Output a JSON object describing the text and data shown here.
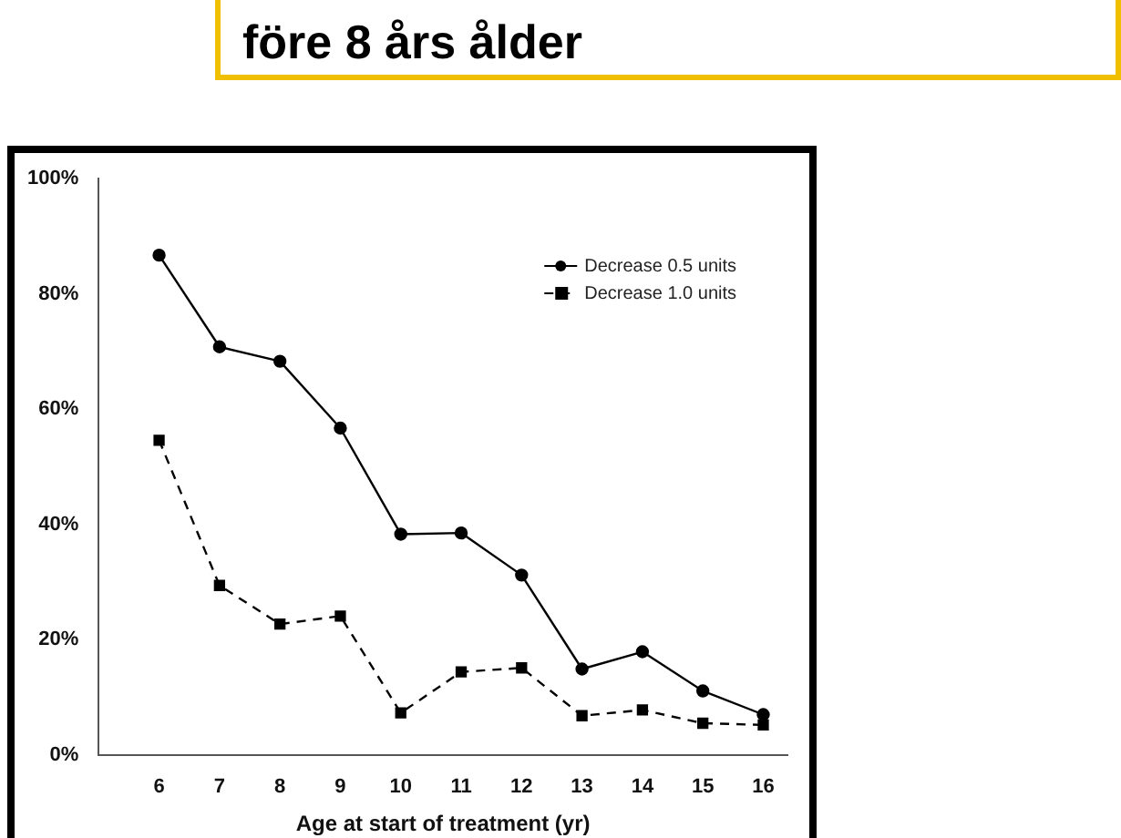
{
  "chart_data": {
    "type": "line",
    "title": "före 8 års ålder",
    "xlabel": "Age at start of treatment (yr)",
    "x": [
      6,
      7,
      8,
      9,
      10,
      11,
      12,
      13,
      14,
      15,
      16
    ],
    "series": [
      {
        "name": "Decrease 0.5 units",
        "color": "#000000",
        "marker": "circle",
        "line_style": "solid",
        "values": [
          86.7,
          70.8,
          68.3,
          56.7,
          38.3,
          38.5,
          31.2,
          14.9,
          17.9,
          11.1,
          7
        ]
      },
      {
        "name": "Decrease 1.0 units",
        "color": "#000000",
        "marker": "square",
        "line_style": "dashed",
        "values": [
          54.6,
          29.4,
          22.7,
          24.1,
          7.3,
          14.4,
          15.1,
          6.8,
          7.8,
          5.5,
          5.2
        ]
      }
    ],
    "xlim": [
      5,
      16.4
    ],
    "xticks": [
      6,
      7,
      8,
      9,
      10,
      11,
      12,
      13,
      14,
      15,
      16
    ],
    "ylim": [
      0,
      100
    ],
    "yticks": [
      {
        "value": 0,
        "label": "0%"
      },
      {
        "value": 20,
        "label": "20%"
      },
      {
        "value": 40,
        "label": "40%"
      },
      {
        "value": 60,
        "label": "60%"
      },
      {
        "value": 80,
        "label": "80%"
      },
      {
        "value": 100,
        "label": "100%"
      }
    ],
    "grid": false,
    "legend": "top right"
  }
}
